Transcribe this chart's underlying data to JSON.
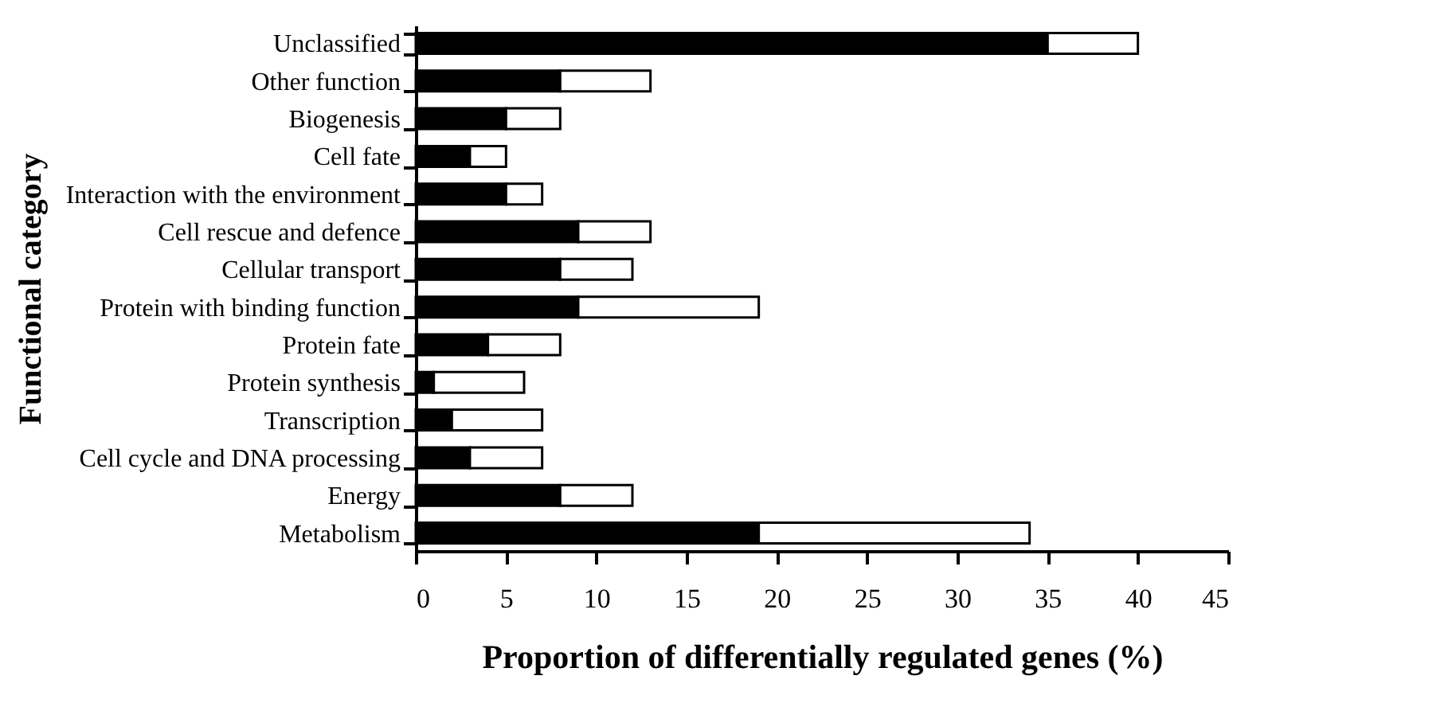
{
  "chart_data": {
    "type": "bar",
    "orientation": "horizontal",
    "stacked": true,
    "categories": [
      "Unclassified",
      "Other function",
      "Biogenesis",
      "Cell fate",
      "Interaction with the environment",
      "Cell rescue and defence",
      "Cellular transport",
      "Protein with binding function",
      "Protein fate",
      "Protein synthesis",
      "Transcription",
      "Cell cycle and DNA processing",
      "Energy",
      "Metabolism"
    ],
    "series": [
      {
        "color": "#000000",
        "values": [
          35,
          8,
          5,
          3,
          5,
          9,
          8,
          9,
          4,
          1,
          2,
          3,
          8,
          19
        ]
      },
      {
        "color": "#ffffff",
        "values": [
          5,
          5,
          3,
          2,
          2,
          4,
          4,
          10,
          4,
          5,
          5,
          4,
          4,
          15
        ]
      }
    ],
    "xlim": [
      0,
      45
    ],
    "xticks": [
      0,
      5,
      10,
      15,
      20,
      25,
      30,
      35,
      40,
      45
    ],
    "xlabel": "Proportion of differentially regulated genes (%)",
    "ylabel": "Functional category",
    "grid": false,
    "legend": false
  }
}
